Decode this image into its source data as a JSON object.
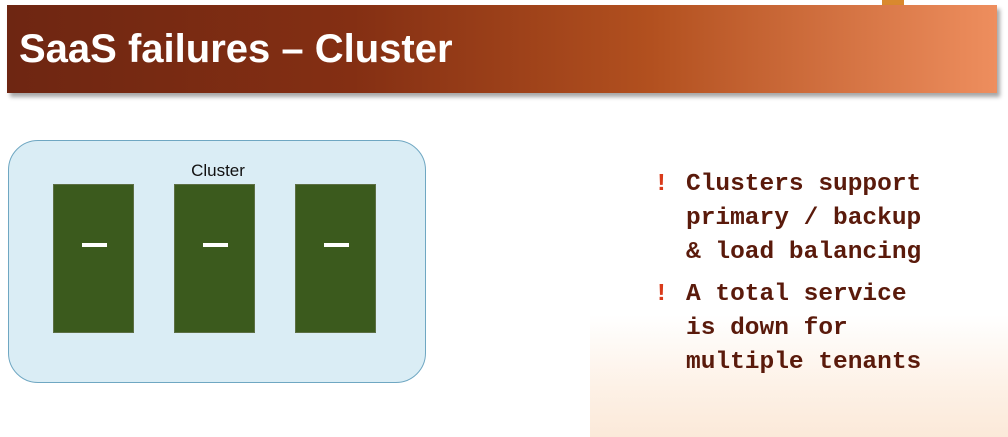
{
  "slide": {
    "title": "SaaS failures – Cluster",
    "accent_color": "#842f13"
  },
  "diagram": {
    "cluster_label": "Cluster",
    "servers": [
      {
        "slot_glyph": "—"
      },
      {
        "slot_glyph": "—"
      },
      {
        "slot_glyph": "—"
      }
    ]
  },
  "bullets": [
    {
      "marker": "!",
      "text": "Clusters support\nprimary / backup\n& load balancing"
    },
    {
      "marker": "!",
      "text": "A total service\nis down for\nmultiple tenants"
    }
  ]
}
